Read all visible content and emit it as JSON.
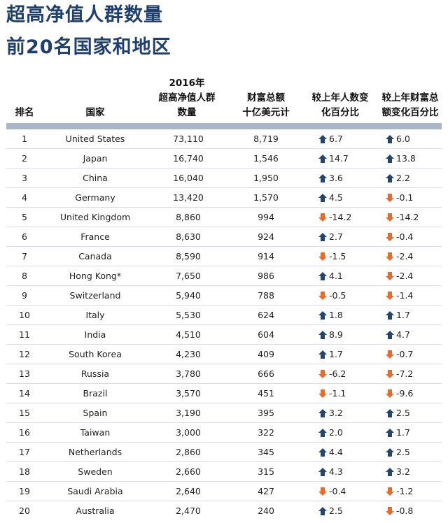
{
  "title": {
    "line1": "超高净值人群数量",
    "line2": "前20名国家和地区"
  },
  "headers": {
    "rank": "排名",
    "country": "国家",
    "count": [
      "2016年",
      "超高净值人群",
      "数量"
    ],
    "wealth": [
      "财富总额",
      "十亿美元计"
    ],
    "pop_change": [
      "较上年人数变",
      "化百分比"
    ],
    "wealth_change": [
      "较上年财富总",
      "额变化百分比"
    ]
  },
  "colors": {
    "title": "#1f3f6e",
    "up": "#22466f",
    "down": "#ec6a27",
    "rule": "#a9b6c9"
  },
  "icons": {
    "up": "up-arrow-icon",
    "down": "down-arrow-icon"
  },
  "rows": [
    {
      "rank": "1",
      "country": "United States",
      "count": "73,110",
      "wealth": "8,719",
      "pop_change": "6.7",
      "pop_dir": "up",
      "wealth_change": "6.0",
      "wealth_dir": "up"
    },
    {
      "rank": "2",
      "country": "Japan",
      "count": "16,740",
      "wealth": "1,546",
      "pop_change": "14.7",
      "pop_dir": "up",
      "wealth_change": "13.8",
      "wealth_dir": "up"
    },
    {
      "rank": "3",
      "country": "China",
      "count": "16,040",
      "wealth": "1,950",
      "pop_change": "3.6",
      "pop_dir": "up",
      "wealth_change": "2.2",
      "wealth_dir": "up"
    },
    {
      "rank": "4",
      "country": "Germany",
      "count": "13,420",
      "wealth": "1,570",
      "pop_change": "4.5",
      "pop_dir": "up",
      "wealth_change": "-0.1",
      "wealth_dir": "down"
    },
    {
      "rank": "5",
      "country": "United Kingdom",
      "count": "8,860",
      "wealth": "994",
      "pop_change": "-14.2",
      "pop_dir": "down",
      "wealth_change": "-14.2",
      "wealth_dir": "down"
    },
    {
      "rank": "6",
      "country": "France",
      "count": "8,630",
      "wealth": "924",
      "pop_change": "2.7",
      "pop_dir": "up",
      "wealth_change": "-0.4",
      "wealth_dir": "down"
    },
    {
      "rank": "7",
      "country": "Canada",
      "count": "8,590",
      "wealth": "914",
      "pop_change": "-1.5",
      "pop_dir": "down",
      "wealth_change": "-2.4",
      "wealth_dir": "down"
    },
    {
      "rank": "8",
      "country": "Hong Kong*",
      "count": "7,650",
      "wealth": "986",
      "pop_change": "4.1",
      "pop_dir": "up",
      "wealth_change": "-2.4",
      "wealth_dir": "down"
    },
    {
      "rank": "9",
      "country": "Switzerland",
      "count": "5,940",
      "wealth": "788",
      "pop_change": "-0.5",
      "pop_dir": "down",
      "wealth_change": "-1.4",
      "wealth_dir": "down"
    },
    {
      "rank": "10",
      "country": "Italy",
      "count": "5,530",
      "wealth": "624",
      "pop_change": "1.8",
      "pop_dir": "up",
      "wealth_change": "1.7",
      "wealth_dir": "up"
    },
    {
      "rank": "11",
      "country": "India",
      "count": "4,510",
      "wealth": "604",
      "pop_change": "8.9",
      "pop_dir": "up",
      "wealth_change": "4.7",
      "wealth_dir": "up"
    },
    {
      "rank": "12",
      "country": "South Korea",
      "count": "4,230",
      "wealth": "409",
      "pop_change": "1.7",
      "pop_dir": "up",
      "wealth_change": "-0.7",
      "wealth_dir": "down"
    },
    {
      "rank": "13",
      "country": "Russia",
      "count": "3,780",
      "wealth": "666",
      "pop_change": "-6.2",
      "pop_dir": "down",
      "wealth_change": "-7.2",
      "wealth_dir": "down"
    },
    {
      "rank": "14",
      "country": "Brazil",
      "count": "3,570",
      "wealth": "451",
      "pop_change": "-1.1",
      "pop_dir": "down",
      "wealth_change": "-9.6",
      "wealth_dir": "down"
    },
    {
      "rank": "15",
      "country": "Spain",
      "count": "3,190",
      "wealth": "395",
      "pop_change": "3.2",
      "pop_dir": "up",
      "wealth_change": "2.5",
      "wealth_dir": "up"
    },
    {
      "rank": "16",
      "country": "Taiwan",
      "count": "3,000",
      "wealth": "322",
      "pop_change": "2.0",
      "pop_dir": "up",
      "wealth_change": "1.7",
      "wealth_dir": "up"
    },
    {
      "rank": "17",
      "country": "Netherlands",
      "count": "2,860",
      "wealth": "345",
      "pop_change": "4.4",
      "pop_dir": "up",
      "wealth_change": "2.5",
      "wealth_dir": "up"
    },
    {
      "rank": "18",
      "country": "Sweden",
      "count": "2,660",
      "wealth": "315",
      "pop_change": "4.3",
      "pop_dir": "up",
      "wealth_change": "3.2",
      "wealth_dir": "up"
    },
    {
      "rank": "19",
      "country": "Saudi Arabia",
      "count": "2,640",
      "wealth": "427",
      "pop_change": "-0.4",
      "pop_dir": "down",
      "wealth_change": "-1.2",
      "wealth_dir": "down"
    },
    {
      "rank": "20",
      "country": "Australia",
      "count": "2,470",
      "wealth": "240",
      "pop_change": "2.5",
      "pop_dir": "up",
      "wealth_change": "-0.8",
      "wealth_dir": "down"
    }
  ]
}
